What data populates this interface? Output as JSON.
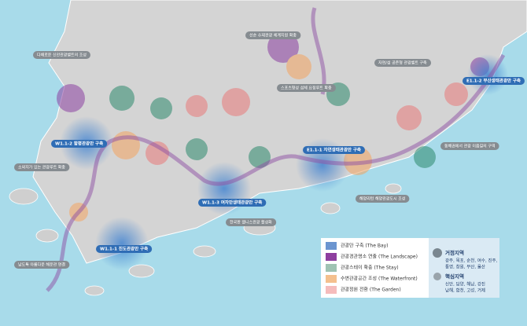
{
  "map": {
    "bay_labels": [
      "W1.1-2 함평관광만 구축",
      "E1.1-1 자연생태관광만 구축",
      "E1.1-2 부산생태관광만 구축",
      "W1.1-3 여자만생태관광만 구축",
      "W1.1-1 진도관광만 구축"
    ],
    "callouts": [
      "선순 수제관광 체계지원 확충",
      "다채로운 신안관광벨트의 조성",
      "자연/섬 공존형 관광벨트 구축",
      "스포츠형성 섬체 요정루트 확충",
      "소외지가 있는 관광루트 확충",
      "동해권에서 관광 이음길의 구역",
      "해양리턴 해양관광도시 조성",
      "한국판 웰니스관광 활성화",
      "남도특 아름다운 해운관 연결"
    ]
  },
  "legend": {
    "items": [
      "관광만 구축 (The Bay)",
      "관광경관명소 연출 (The Landscape)",
      "관광스테이 확충 (The Stay)",
      "수변관광공간 조성 (The Waterfront)",
      "관광정원 전환 (The Garden)"
    ],
    "core": {
      "title": "거점지역",
      "regions": [
        "광주, 목포, 순천, 여수, 진주,",
        "통영, 창원, 부산, 울산"
      ]
    },
    "key": {
      "title": "핵심지역",
      "regions": [
        "신안, 담양, 해남, 강진",
        "남해, 합천, 고성, 거제"
      ]
    }
  }
}
